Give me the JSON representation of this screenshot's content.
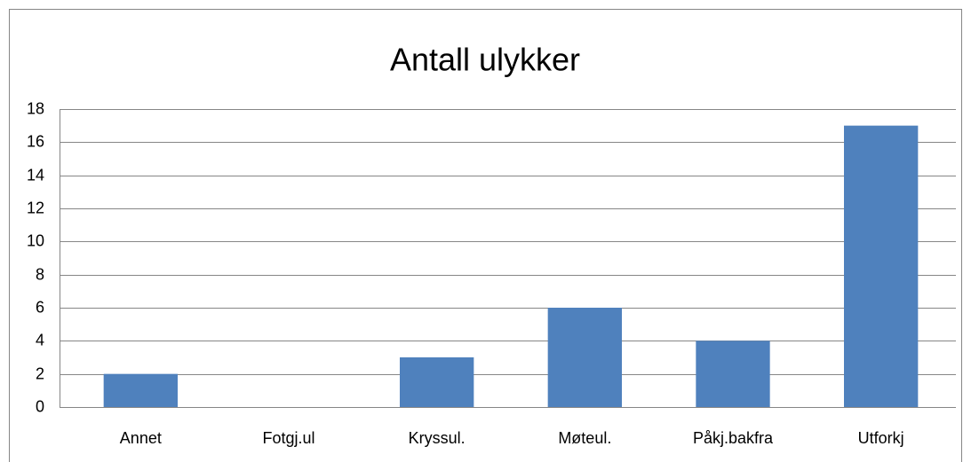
{
  "chart_data": {
    "type": "bar",
    "title": "Antall ulykker",
    "categories": [
      "Annet",
      "Fotgj.ul",
      "Kryssul.",
      "Møteul.",
      "Påkj.bakfra",
      "Utforkj"
    ],
    "values": [
      2,
      0,
      3,
      6,
      4,
      17
    ],
    "color": "#4f81bd",
    "ylim": [
      0,
      18
    ],
    "yticks": [
      0,
      2,
      4,
      6,
      8,
      10,
      12,
      14,
      16,
      18
    ],
    "grid": true
  }
}
